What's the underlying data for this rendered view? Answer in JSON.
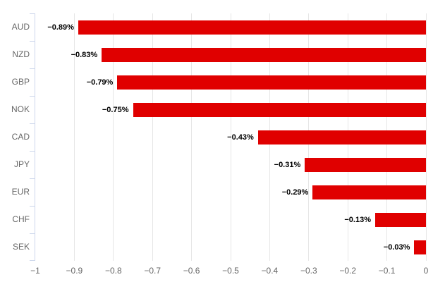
{
  "chart_data": {
    "type": "bar",
    "orientation": "horizontal",
    "title": "",
    "xlabel": "",
    "ylabel": "",
    "categories": [
      "AUD",
      "NZD",
      "GBP",
      "NOK",
      "CAD",
      "JPY",
      "EUR",
      "CHF",
      "SEK"
    ],
    "values": [
      -0.89,
      -0.83,
      -0.79,
      -0.75,
      -0.43,
      -0.31,
      -0.29,
      -0.13,
      -0.03
    ],
    "data_labels": [
      "−0.89%",
      "−0.83%",
      "−0.79%",
      "−0.75%",
      "−0.43%",
      "−0.31%",
      "−0.29%",
      "−0.13%",
      "−0.03%"
    ],
    "xlim": [
      -1,
      0
    ],
    "x_tick_values": [
      -1,
      -0.9,
      -0.8,
      -0.7,
      -0.6,
      -0.5,
      -0.4,
      -0.3,
      -0.2,
      -0.1,
      0
    ],
    "x_tick_labels": [
      "−1",
      "−0.9",
      "−0.8",
      "−0.7",
      "−0.6",
      "−0.5",
      "−0.4",
      "−0.3",
      "−0.2",
      "−0.1",
      "0"
    ],
    "grid": true,
    "legend": "none",
    "colors": {
      "bar": "#e00000",
      "gridline": "#e6e6e6",
      "axis_line": "#ccd6eb",
      "tick_label": "#666666",
      "data_label": "#000000",
      "background": "#ffffff"
    }
  }
}
